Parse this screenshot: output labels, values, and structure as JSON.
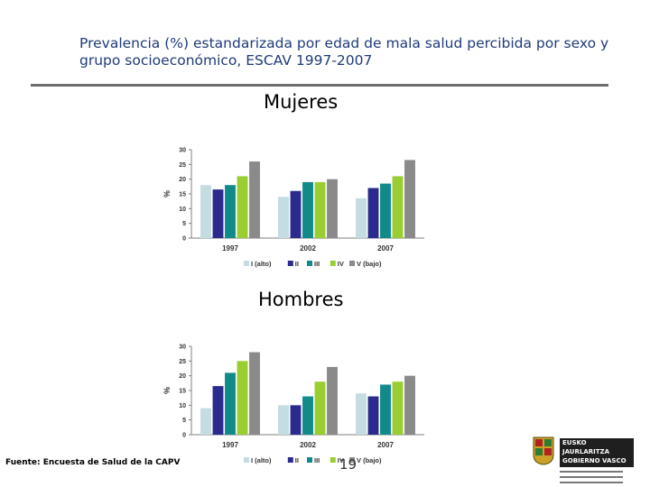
{
  "slide": {
    "title": "Prevalencia (%) estandarizada por edad de mala salud percibida por sexo y grupo socioeconómico, ESCAV 1997-2007",
    "source": "Fuente: Encuesta de Salud de la CAPV",
    "page_number": "19",
    "logo_text": [
      "EUSKO JAURLARITZA",
      "GOBIERNO VASCO"
    ]
  },
  "colors": {
    "title": "#1f3a7a",
    "series": [
      "#c4dce2",
      "#2b2b8f",
      "#138a8a",
      "#9acd32",
      "#8a8a8a"
    ]
  },
  "chart_data": [
    {
      "type": "bar",
      "section_label": "Mujeres",
      "title": "",
      "xlabel": "",
      "ylabel": "%",
      "ylim": [
        0,
        30
      ],
      "yticks": [
        0,
        5,
        10,
        15,
        20,
        25,
        30
      ],
      "grid": false,
      "legend_position": "bottom",
      "categories": [
        "1997",
        "2002",
        "2007"
      ],
      "series": [
        {
          "name": "I (alto)",
          "values": [
            18,
            14,
            13.5
          ]
        },
        {
          "name": "II",
          "values": [
            16.5,
            16,
            17
          ]
        },
        {
          "name": "III",
          "values": [
            18,
            19,
            18.5
          ]
        },
        {
          "name": "IV",
          "values": [
            21,
            19,
            21
          ]
        },
        {
          "name": "V (bajo)",
          "values": [
            26,
            20,
            26.5
          ]
        }
      ]
    },
    {
      "type": "bar",
      "section_label": "Hombres",
      "title": "",
      "xlabel": "",
      "ylabel": "%",
      "ylim": [
        0,
        30
      ],
      "yticks": [
        0,
        5,
        10,
        15,
        20,
        25,
        30
      ],
      "grid": false,
      "legend_position": "bottom",
      "categories": [
        "1997",
        "2002",
        "2007"
      ],
      "series": [
        {
          "name": "I (alto)",
          "values": [
            9,
            10,
            14
          ]
        },
        {
          "name": "II",
          "values": [
            16.5,
            10,
            13
          ]
        },
        {
          "name": "III",
          "values": [
            21,
            13,
            17
          ]
        },
        {
          "name": "IV",
          "values": [
            25,
            18,
            18
          ]
        },
        {
          "name": "V (bajo)",
          "values": [
            28,
            23,
            20
          ]
        }
      ]
    }
  ]
}
